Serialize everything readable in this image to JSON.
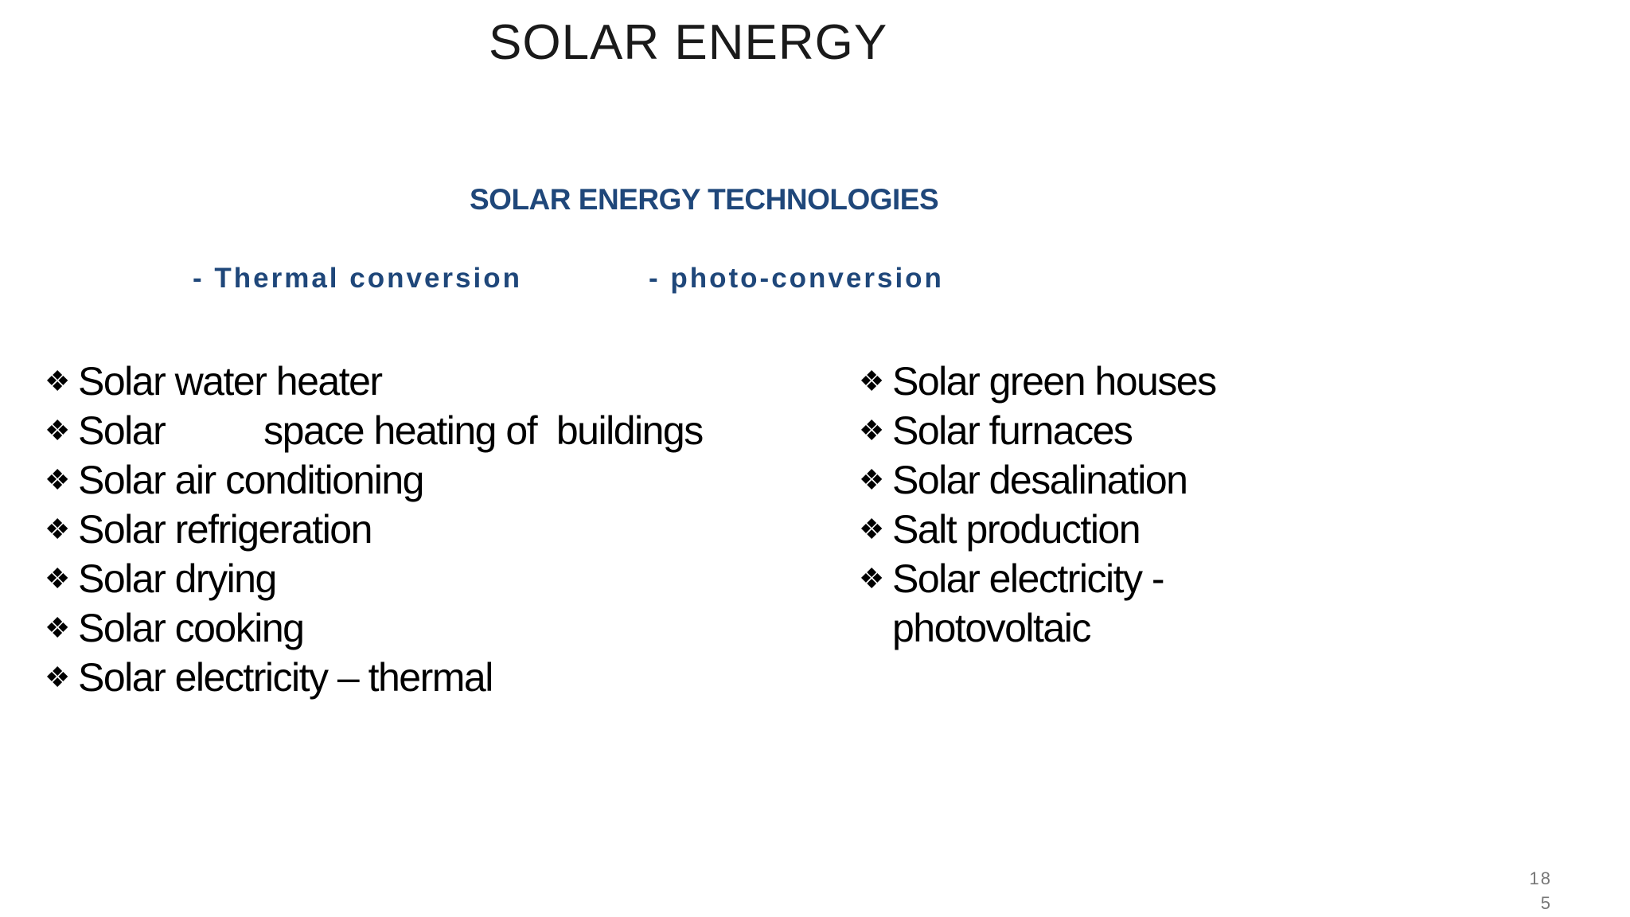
{
  "slide": {
    "title": "SOLAR ENERGY",
    "heading": "SOLAR ENERGY TECHNOLOGIES",
    "subheadings": [
      "- Thermal conversion",
      "- photo-conversion"
    ],
    "bullet_icon": "four-diamond-bullet",
    "bullet_glyph": "❖",
    "left_items": [
      "Solar water heater",
      "Solar          space heating of  buildings",
      "Solar air conditioning",
      "Solar refrigeration",
      "Solar drying",
      "Solar cooking",
      "Solar electricity – thermal"
    ],
    "right_items": [
      "Solar green houses",
      "Solar furnaces",
      "Solar desalination",
      "Salt production",
      "Solar electricity -"
    ],
    "right_continuation": "photovoltaic",
    "page_number_line1": "18",
    "page_number_line2": "5",
    "colors": {
      "heading": "#1f477a",
      "text": "#000000"
    }
  }
}
